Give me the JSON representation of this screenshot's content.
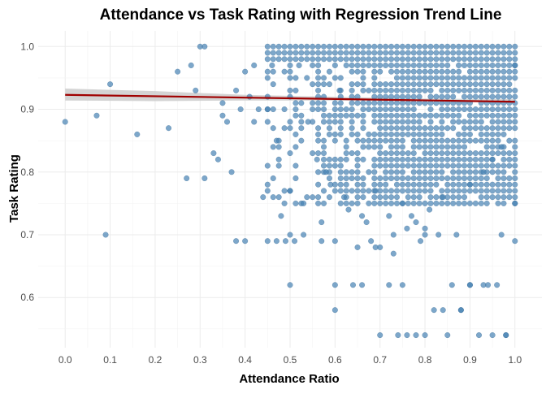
{
  "chart_data": {
    "type": "scatter",
    "title": "Attendance vs Task Rating with Regression Trend Line",
    "xlabel": "Attendance Ratio",
    "ylabel": "Task Rating",
    "xlim": [
      -0.06,
      1.06
    ],
    "ylim": [
      0.52,
      1.025
    ],
    "x_ticks": [
      "0.0",
      "0.1",
      "0.2",
      "0.3",
      "0.4",
      "0.5",
      "0.6",
      "0.7",
      "0.8",
      "0.9",
      "1.0"
    ],
    "y_ticks": [
      "0.6",
      "0.7",
      "0.8",
      "0.9",
      "1.0"
    ],
    "grid": true,
    "legend": "none",
    "colors": {
      "points": "#4682b4",
      "trend": "#a00000",
      "band": "#cccccc",
      "grid": "#ebebeb"
    },
    "points": {
      "note_density": "Dense cloud of points for x in 0.45–1.0 and y in 0.75–1.0 represented by listed samples",
      "x": [
        0.0,
        0.07,
        0.1,
        0.16,
        0.09,
        0.23,
        0.25,
        0.27,
        0.28,
        0.29,
        0.3,
        0.31,
        0.31,
        0.33,
        0.34,
        0.35,
        0.35,
        0.36,
        0.37,
        0.38,
        0.38,
        0.39,
        0.4,
        0.4,
        0.41,
        0.42,
        0.42,
        0.43,
        0.44,
        0.45,
        0.45,
        0.46,
        0.47,
        0.47,
        0.48,
        0.49,
        0.5,
        0.5,
        0.5,
        0.51,
        0.52,
        0.53,
        0.53,
        0.54,
        0.55,
        0.56,
        0.57,
        0.57,
        0.58,
        0.59,
        0.6,
        0.6,
        0.61,
        0.62,
        0.63,
        0.64,
        0.65,
        0.66,
        0.67,
        0.68,
        0.69,
        0.7,
        0.7,
        0.72,
        0.73,
        0.74,
        0.75,
        0.76,
        0.77,
        0.78,
        0.79,
        0.8,
        0.82,
        0.83,
        0.85,
        0.87,
        0.88,
        0.9,
        0.92,
        0.93,
        0.95,
        0.97,
        0.98,
        1.0,
        1.0,
        1.0,
        0.5,
        0.6,
        0.66,
        0.72,
        0.75,
        0.8,
        0.86,
        0.9,
        0.94,
        0.96,
        0.98,
        0.8,
        0.84,
        0.88,
        0.69,
        0.73,
        0.76,
        0.78,
        0.81,
        0.84,
        0.9,
        0.93,
        0.95,
        0.97
      ],
      "y": [
        0.88,
        0.89,
        0.94,
        0.86,
        0.7,
        0.87,
        0.96,
        0.79,
        0.97,
        0.93,
        1.0,
        1.0,
        0.79,
        0.83,
        0.82,
        0.91,
        0.89,
        0.88,
        0.8,
        0.69,
        0.93,
        0.9,
        0.69,
        0.96,
        0.92,
        0.97,
        0.88,
        0.9,
        0.76,
        0.9,
        0.69,
        0.97,
        0.85,
        0.69,
        0.73,
        0.69,
        0.62,
        0.7,
        0.92,
        0.69,
        0.97,
        0.75,
        0.7,
        0.88,
        0.76,
        0.82,
        0.72,
        0.69,
        0.8,
        0.78,
        0.58,
        0.69,
        0.93,
        0.76,
        0.74,
        0.62,
        0.68,
        0.73,
        0.72,
        0.69,
        0.77,
        0.54,
        0.68,
        0.73,
        0.67,
        0.54,
        0.75,
        0.54,
        0.73,
        0.54,
        0.69,
        0.71,
        0.58,
        0.7,
        0.54,
        0.7,
        0.58,
        0.62,
        0.54,
        0.62,
        0.54,
        0.7,
        0.54,
        0.69,
        0.75,
        0.97,
        0.77,
        0.62,
        0.62,
        0.62,
        0.62,
        0.7,
        0.62,
        0.62,
        0.62,
        0.62,
        0.54,
        0.54,
        0.58,
        0.58,
        0.68,
        0.7,
        0.71,
        0.72,
        0.74,
        0.76,
        0.78,
        0.8,
        0.82,
        0.84
      ]
    },
    "dense_region": {
      "x_range": [
        0.45,
        1.0
      ],
      "y_values": [
        0.75,
        0.76,
        0.77,
        0.78,
        0.79,
        0.8,
        0.81,
        0.82,
        0.83,
        0.84,
        0.85,
        0.86,
        0.87,
        0.88,
        0.89,
        0.9,
        0.91,
        0.92,
        0.93,
        0.94,
        0.95,
        0.96,
        0.97,
        0.98,
        0.99,
        1.0
      ]
    },
    "trend": {
      "x": [
        0.0,
        1.0
      ],
      "y": [
        0.923,
        0.912
      ]
    },
    "confidence_band": {
      "x": [
        0.0,
        0.2,
        0.4,
        0.6,
        0.8,
        1.0
      ],
      "lower": [
        0.914,
        0.913,
        0.914,
        0.914,
        0.913,
        0.91
      ],
      "upper": [
        0.933,
        0.929,
        0.923,
        0.92,
        0.917,
        0.916
      ]
    }
  }
}
